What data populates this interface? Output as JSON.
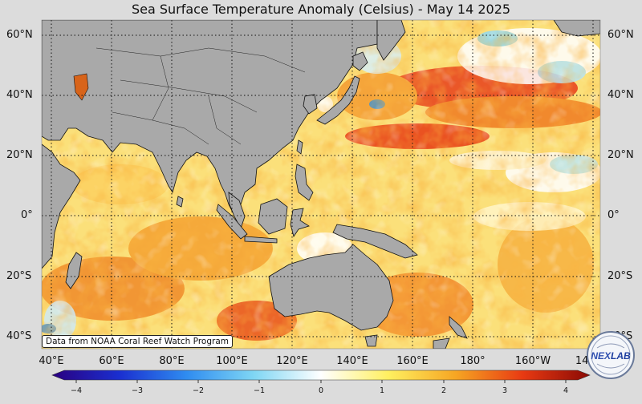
{
  "title": "Sea Surface Temperature Anomaly (Celsius) - May 14 2025",
  "credit": "Data from NOAA Coral Reef Watch Program",
  "logo_text": "NEXLAB",
  "lat_labels": [
    "60°N",
    "40°N",
    "20°N",
    "0°",
    "20°S",
    "40°S"
  ],
  "lon_labels": [
    "40°E",
    "60°E",
    "80°E",
    "100°E",
    "120°E",
    "140°E",
    "160°E",
    "180°",
    "160°W",
    "140°W"
  ],
  "colorbar": {
    "ticks": [
      "−4",
      "−3",
      "−2",
      "−1",
      "0",
      "1",
      "2",
      "3",
      "4"
    ],
    "colors": [
      "#2a0080",
      "#1a2fd0",
      "#2f8cf0",
      "#7fd6f4",
      "#ffffff",
      "#fff060",
      "#f6a623",
      "#e83a12",
      "#8a0a05"
    ]
  },
  "palette": {
    "land": "#a9a9a9",
    "ocean_base": "#fbe07a"
  }
}
